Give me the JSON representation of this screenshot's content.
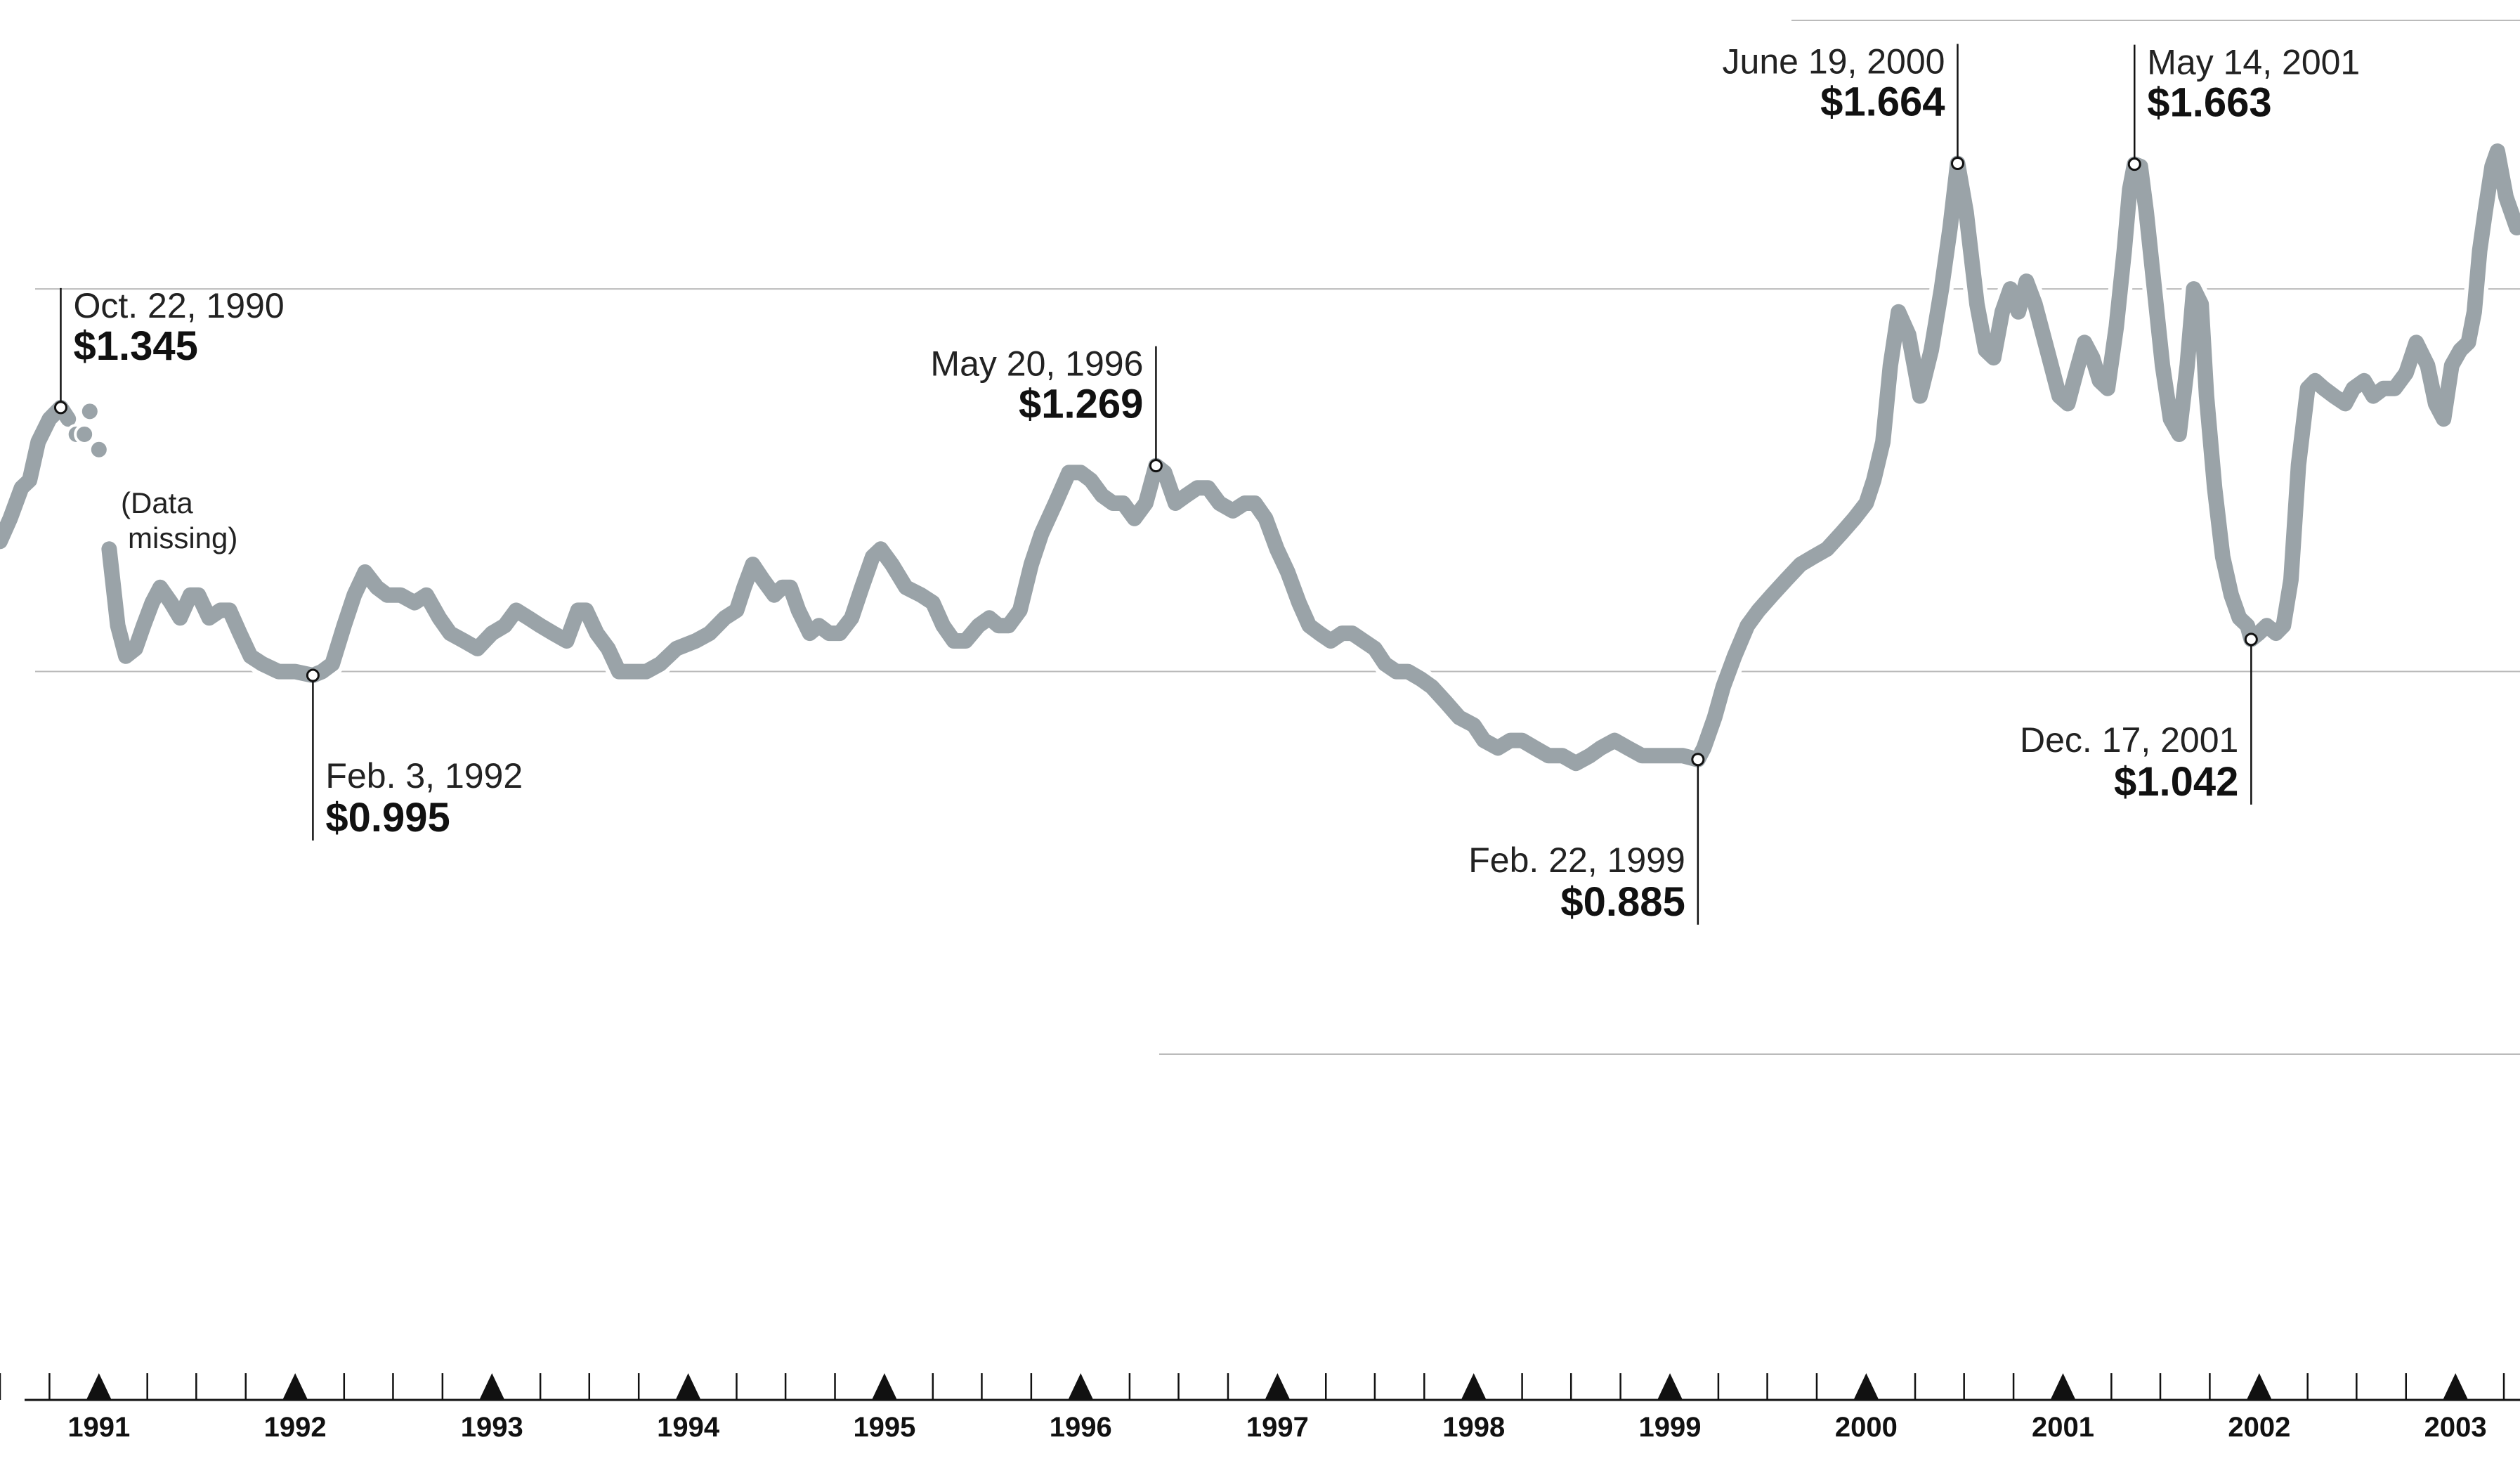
{
  "chart_data": {
    "type": "line",
    "title": "",
    "xlabel": "",
    "ylabel": "",
    "ylim": [
      0.5,
      1.85
    ],
    "xlim": [
      "1990-07-01",
      "2003-05-01"
    ],
    "grid_values": [
      0.5,
      1.0,
      1.5
    ],
    "colors": {
      "line": "#9aa3a8",
      "grid": "#bbbbbb",
      "axis": "#111111",
      "marker": "#ffffff"
    },
    "x_tick_labels": [
      "1991",
      "1992",
      "1993",
      "1994",
      "1995",
      "1996",
      "1997",
      "1998",
      "1999",
      "2000",
      "2001",
      "2002",
      "2003"
    ],
    "missing_note": {
      "line1": "(Data",
      "line2": "missing)"
    },
    "annotations": [
      {
        "date": "1990-10-22",
        "date_label": "Oct. 22, 1990",
        "value": 1.345,
        "value_label": "$1.345",
        "side": "above"
      },
      {
        "date": "1992-02-03",
        "date_label": "Feb. 3, 1992",
        "value": 0.995,
        "value_label": "$0.995",
        "side": "below"
      },
      {
        "date": "1996-05-20",
        "date_label": "May 20, 1996",
        "value": 1.269,
        "value_label": "$1.269",
        "side": "above-left"
      },
      {
        "date": "1999-02-22",
        "date_label": "Feb. 22, 1999",
        "value": 0.885,
        "value_label": "$0.885",
        "side": "below-left"
      },
      {
        "date": "2000-06-19",
        "date_label": "June 19, 2000",
        "value": 1.664,
        "value_label": "$1.664",
        "side": "above-left"
      },
      {
        "date": "2001-05-14",
        "date_label": "May 14, 2001",
        "value": 1.663,
        "value_label": "$1.663",
        "side": "above"
      },
      {
        "date": "2001-12-17",
        "date_label": "Dec. 17, 2001",
        "value": 1.042,
        "value_label": "$1.042",
        "side": "below-left"
      }
    ],
    "series": [
      {
        "values": [
          [
            "1990-07-01",
            1.17
          ],
          [
            "1990-07-20",
            1.2
          ],
          [
            "1990-08-10",
            1.24
          ],
          [
            "1990-08-25",
            1.25
          ],
          [
            "1990-09-10",
            1.3
          ],
          [
            "1990-10-01",
            1.33
          ],
          [
            "1990-10-22",
            1.345
          ],
          [
            "1990-11-05",
            1.33
          ],
          [
            "1990-11-20",
            1.31
          ],
          [
            "1990-12-05",
            1.31
          ],
          [
            "1990-12-15",
            1.34
          ],
          [
            "1991-01-01",
            1.29
          ],
          [
            "1991-01-20",
            1.16
          ],
          [
            "1991-02-05",
            1.06
          ],
          [
            "1991-02-20",
            1.02
          ],
          [
            "1991-03-10",
            1.03
          ],
          [
            "1991-03-25",
            1.06
          ],
          [
            "1991-04-10",
            1.09
          ],
          [
            "1991-04-25",
            1.11
          ],
          [
            "1991-05-15",
            1.09
          ],
          [
            "1991-06-01",
            1.07
          ],
          [
            "1991-06-20",
            1.1
          ],
          [
            "1991-07-05",
            1.1
          ],
          [
            "1991-07-25",
            1.07
          ],
          [
            "1991-08-15",
            1.08
          ],
          [
            "1991-09-01",
            1.08
          ],
          [
            "1991-09-20",
            1.05
          ],
          [
            "1991-10-10",
            1.02
          ],
          [
            "1991-11-01",
            1.01
          ],
          [
            "1991-12-01",
            1.0
          ],
          [
            "1992-01-01",
            1.0
          ],
          [
            "1992-02-03",
            0.995
          ],
          [
            "1992-02-20",
            1.0
          ],
          [
            "1992-03-10",
            1.01
          ],
          [
            "1992-04-01",
            1.06
          ],
          [
            "1992-04-20",
            1.1
          ],
          [
            "1992-05-10",
            1.13
          ],
          [
            "1992-06-01",
            1.11
          ],
          [
            "1992-06-20",
            1.1
          ],
          [
            "1992-07-15",
            1.1
          ],
          [
            "1992-08-10",
            1.09
          ],
          [
            "1992-09-01",
            1.1
          ],
          [
            "1992-09-25",
            1.07
          ],
          [
            "1992-10-15",
            1.05
          ],
          [
            "1992-11-10",
            1.04
          ],
          [
            "1992-12-05",
            1.03
          ],
          [
            "1993-01-01",
            1.05
          ],
          [
            "1993-01-25",
            1.06
          ],
          [
            "1993-02-15",
            1.08
          ],
          [
            "1993-03-10",
            1.07
          ],
          [
            "1993-04-01",
            1.06
          ],
          [
            "1993-04-25",
            1.05
          ],
          [
            "1993-05-20",
            1.04
          ],
          [
            "1993-06-10",
            1.08
          ],
          [
            "1993-06-25",
            1.08
          ],
          [
            "1993-07-15",
            1.05
          ],
          [
            "1993-08-05",
            1.03
          ],
          [
            "1993-08-25",
            1.0
          ],
          [
            "1993-09-20",
            1.0
          ],
          [
            "1993-10-15",
            1.0
          ],
          [
            "1993-11-10",
            1.01
          ],
          [
            "1993-12-10",
            1.03
          ],
          [
            "1994-01-15",
            1.04
          ],
          [
            "1994-02-10",
            1.05
          ],
          [
            "1994-03-10",
            1.07
          ],
          [
            "1994-04-01",
            1.08
          ],
          [
            "1994-04-15",
            1.11
          ],
          [
            "1994-05-01",
            1.14
          ],
          [
            "1994-05-20",
            1.12
          ],
          [
            "1994-06-10",
            1.1
          ],
          [
            "1994-06-25",
            1.11
          ],
          [
            "1994-07-10",
            1.11
          ],
          [
            "1994-07-25",
            1.08
          ],
          [
            "1994-08-15",
            1.05
          ],
          [
            "1994-09-01",
            1.06
          ],
          [
            "1994-09-20",
            1.05
          ],
          [
            "1994-10-10",
            1.05
          ],
          [
            "1994-11-01",
            1.07
          ],
          [
            "1994-11-20",
            1.11
          ],
          [
            "1994-12-10",
            1.15
          ],
          [
            "1994-12-25",
            1.16
          ],
          [
            "1995-01-15",
            1.14
          ],
          [
            "1995-02-10",
            1.11
          ],
          [
            "1995-03-10",
            1.1
          ],
          [
            "1995-04-01",
            1.09
          ],
          [
            "1995-04-20",
            1.06
          ],
          [
            "1995-05-10",
            1.04
          ],
          [
            "1995-06-01",
            1.04
          ],
          [
            "1995-06-25",
            1.06
          ],
          [
            "1995-07-15",
            1.07
          ],
          [
            "1995-08-01",
            1.06
          ],
          [
            "1995-08-20",
            1.06
          ],
          [
            "1995-09-10",
            1.08
          ],
          [
            "1995-10-01",
            1.14
          ],
          [
            "1995-10-20",
            1.18
          ],
          [
            "1995-11-15",
            1.22
          ],
          [
            "1995-12-10",
            1.26
          ],
          [
            "1996-01-01",
            1.26
          ],
          [
            "1996-01-20",
            1.25
          ],
          [
            "1996-02-10",
            1.23
          ],
          [
            "1996-03-01",
            1.22
          ],
          [
            "1996-03-20",
            1.22
          ],
          [
            "1996-04-10",
            1.2
          ],
          [
            "1996-05-01",
            1.22
          ],
          [
            "1996-05-20",
            1.269
          ],
          [
            "1996-06-05",
            1.26
          ],
          [
            "1996-06-25",
            1.22
          ],
          [
            "1996-07-15",
            1.23
          ],
          [
            "1996-08-05",
            1.24
          ],
          [
            "1996-08-25",
            1.24
          ],
          [
            "1996-09-15",
            1.22
          ],
          [
            "1996-10-10",
            1.21
          ],
          [
            "1996-11-01",
            1.22
          ],
          [
            "1996-11-20",
            1.22
          ],
          [
            "1996-12-10",
            1.2
          ],
          [
            "1996-12-31",
            1.16
          ],
          [
            "1997-01-20",
            1.13
          ],
          [
            "1997-02-10",
            1.09
          ],
          [
            "1997-03-01",
            1.06
          ],
          [
            "1997-03-20",
            1.05
          ],
          [
            "1997-04-10",
            1.04
          ],
          [
            "1997-05-01",
            1.05
          ],
          [
            "1997-05-20",
            1.05
          ],
          [
            "1997-06-10",
            1.04
          ],
          [
            "1997-07-01",
            1.03
          ],
          [
            "1997-07-20",
            1.01
          ],
          [
            "1997-08-10",
            1.0
          ],
          [
            "1997-09-01",
            1.0
          ],
          [
            "1997-09-25",
            0.99
          ],
          [
            "1997-10-15",
            0.98
          ],
          [
            "1997-11-10",
            0.96
          ],
          [
            "1997-12-05",
            0.94
          ],
          [
            "1998-01-01",
            0.93
          ],
          [
            "1998-01-20",
            0.91
          ],
          [
            "1998-02-15",
            0.9
          ],
          [
            "1998-03-10",
            0.91
          ],
          [
            "1998-04-01",
            0.91
          ],
          [
            "1998-04-25",
            0.9
          ],
          [
            "1998-05-20",
            0.89
          ],
          [
            "1998-06-15",
            0.89
          ],
          [
            "1998-07-10",
            0.88
          ],
          [
            "1998-08-05",
            0.89
          ],
          [
            "1998-08-25",
            0.9
          ],
          [
            "1998-09-20",
            0.91
          ],
          [
            "1998-10-15",
            0.9
          ],
          [
            "1998-11-10",
            0.89
          ],
          [
            "1998-12-05",
            0.89
          ],
          [
            "1999-01-01",
            0.89
          ],
          [
            "1999-01-25",
            0.89
          ],
          [
            "1999-02-22",
            0.885
          ],
          [
            "1999-03-05",
            0.9
          ],
          [
            "1999-03-25",
            0.94
          ],
          [
            "1999-04-10",
            0.98
          ],
          [
            "1999-05-01",
            1.02
          ],
          [
            "1999-05-25",
            1.06
          ],
          [
            "1999-06-15",
            1.08
          ],
          [
            "1999-07-10",
            1.1
          ],
          [
            "1999-08-05",
            1.12
          ],
          [
            "1999-09-01",
            1.14
          ],
          [
            "1999-09-25",
            1.15
          ],
          [
            "1999-10-20",
            1.16
          ],
          [
            "1999-11-15",
            1.18
          ],
          [
            "1999-12-10",
            1.2
          ],
          [
            "2000-01-01",
            1.22
          ],
          [
            "2000-01-15",
            1.25
          ],
          [
            "2000-02-01",
            1.3
          ],
          [
            "2000-02-15",
            1.4
          ],
          [
            "2000-03-01",
            1.47
          ],
          [
            "2000-03-20",
            1.44
          ],
          [
            "2000-04-10",
            1.36
          ],
          [
            "2000-05-01",
            1.42
          ],
          [
            "2000-05-20",
            1.5
          ],
          [
            "2000-06-05",
            1.58
          ],
          [
            "2000-06-19",
            1.664
          ],
          [
            "2000-07-05",
            1.6
          ],
          [
            "2000-07-25",
            1.48
          ],
          [
            "2000-08-10",
            1.42
          ],
          [
            "2000-08-25",
            1.41
          ],
          [
            "2000-09-10",
            1.47
          ],
          [
            "2000-09-25",
            1.5
          ],
          [
            "2000-10-10",
            1.47
          ],
          [
            "2000-10-25",
            1.51
          ],
          [
            "2000-11-10",
            1.48
          ],
          [
            "2000-11-25",
            1.44
          ],
          [
            "2000-12-10",
            1.4
          ],
          [
            "2000-12-25",
            1.36
          ],
          [
            "2001-01-10",
            1.35
          ],
          [
            "2001-01-25",
            1.39
          ],
          [
            "2001-02-10",
            1.43
          ],
          [
            "2001-02-25",
            1.41
          ],
          [
            "2001-03-10",
            1.38
          ],
          [
            "2001-03-25",
            1.37
          ],
          [
            "2001-04-10",
            1.45
          ],
          [
            "2001-04-25",
            1.55
          ],
          [
            "2001-05-05",
            1.63
          ],
          [
            "2001-05-14",
            1.663
          ],
          [
            "2001-05-25",
            1.66
          ],
          [
            "2001-06-05",
            1.6
          ],
          [
            "2001-06-20",
            1.5
          ],
          [
            "2001-07-05",
            1.4
          ],
          [
            "2001-07-20",
            1.33
          ],
          [
            "2001-08-05",
            1.31
          ],
          [
            "2001-08-20",
            1.4
          ],
          [
            "2001-09-01",
            1.5
          ],
          [
            "2001-09-15",
            1.48
          ],
          [
            "2001-09-25",
            1.36
          ],
          [
            "2001-10-10",
            1.24
          ],
          [
            "2001-10-25",
            1.15
          ],
          [
            "2001-11-10",
            1.1
          ],
          [
            "2001-11-25",
            1.07
          ],
          [
            "2001-12-10",
            1.06
          ],
          [
            "2001-12-17",
            1.042
          ],
          [
            "2001-12-31",
            1.05
          ],
          [
            "2002-01-15",
            1.06
          ],
          [
            "2002-02-01",
            1.05
          ],
          [
            "2002-02-15",
            1.06
          ],
          [
            "2002-03-01",
            1.12
          ],
          [
            "2002-03-15",
            1.27
          ],
          [
            "2002-04-01",
            1.37
          ],
          [
            "2002-04-15",
            1.38
          ],
          [
            "2002-05-01",
            1.37
          ],
          [
            "2002-05-20",
            1.36
          ],
          [
            "2002-06-10",
            1.35
          ],
          [
            "2002-06-25",
            1.37
          ],
          [
            "2002-07-15",
            1.38
          ],
          [
            "2002-08-01",
            1.36
          ],
          [
            "2002-08-20",
            1.37
          ],
          [
            "2002-09-10",
            1.37
          ],
          [
            "2002-10-01",
            1.39
          ],
          [
            "2002-10-20",
            1.43
          ],
          [
            "2002-11-10",
            1.4
          ],
          [
            "2002-11-25",
            1.35
          ],
          [
            "2002-12-10",
            1.33
          ],
          [
            "2002-12-25",
            1.4
          ],
          [
            "2003-01-10",
            1.42
          ],
          [
            "2003-01-25",
            1.43
          ],
          [
            "2003-02-05",
            1.47
          ],
          [
            "2003-02-15",
            1.55
          ],
          [
            "2003-02-25",
            1.6
          ],
          [
            "2003-03-10",
            1.66
          ],
          [
            "2003-03-20",
            1.68
          ],
          [
            "2003-04-05",
            1.62
          ],
          [
            "2003-04-25",
            1.58
          ]
        ]
      }
    ]
  }
}
